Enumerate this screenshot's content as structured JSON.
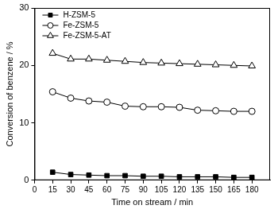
{
  "chart_data": {
    "type": "line",
    "x_label": "Time on stream / min",
    "y_label": "Conversion of benzene / %",
    "x": [
      15,
      30,
      45,
      60,
      75,
      90,
      105,
      120,
      135,
      150,
      165,
      180
    ],
    "series": [
      {
        "name": "H-ZSM-5",
        "color": "#000000",
        "marker": "filled_square",
        "line_style": "solid",
        "values": [
          1.4,
          1.0,
          0.9,
          0.8,
          0.8,
          0.7,
          0.7,
          0.6,
          0.6,
          0.6,
          0.5,
          0.5
        ]
      },
      {
        "name": "Fe-ZSM-5",
        "color": "#000000",
        "marker": "open_circle",
        "line_style": "solid",
        "values": [
          15.4,
          14.3,
          13.8,
          13.6,
          12.9,
          12.8,
          12.8,
          12.7,
          12.2,
          12.1,
          12.0,
          12.0
        ]
      },
      {
        "name": "Fe-ZSM-5-AT",
        "color": "#000000",
        "marker": "open_triangle",
        "line_style": "solid",
        "values": [
          22.1,
          21.1,
          21.1,
          20.9,
          20.7,
          20.5,
          20.4,
          20.3,
          20.2,
          20.1,
          20.0,
          19.9
        ]
      }
    ],
    "xlim": [
      0,
      195
    ],
    "xticks": [
      0,
      15,
      30,
      45,
      60,
      75,
      90,
      105,
      120,
      135,
      150,
      165,
      180
    ],
    "ylim": [
      0,
      30
    ],
    "yticks": [
      0,
      10,
      20,
      30
    ],
    "grid": false,
    "legend": "top-left"
  }
}
